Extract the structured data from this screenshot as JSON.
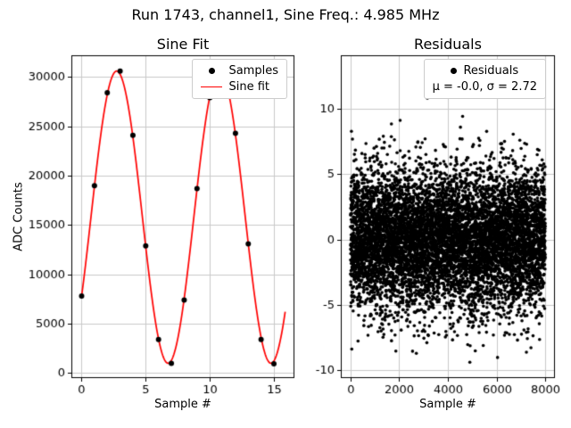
{
  "suptitle": "Run 1743, channel1, Sine Freq.: 4.985 MHz",
  "colors": {
    "fit_line": "#ff0000",
    "samples": "#000000",
    "grid": "#c9c9c9",
    "spine": "#000000",
    "background": "#ffffff"
  },
  "chart_data": [
    {
      "id": "sine_fit",
      "type": "scatter",
      "title": "Sine Fit",
      "xlabel": "Sample #",
      "ylabel": "ADC Counts",
      "xlim": [
        -0.8,
        16.6
      ],
      "ylim": [
        -500,
        32200
      ],
      "xticks": [
        0,
        5,
        10,
        15
      ],
      "yticks": [
        0,
        5000,
        10000,
        15000,
        20000,
        25000,
        30000
      ],
      "grid": true,
      "samples": {
        "x": [
          0,
          1,
          2,
          3,
          4,
          5,
          6,
          7,
          8,
          9,
          10,
          11,
          12,
          13,
          14,
          15
        ],
        "y": [
          7800,
          19000,
          28400,
          30600,
          24100,
          12900,
          3400,
          1000,
          7400,
          18700,
          27900,
          30400,
          24300,
          13100,
          3400,
          950
        ]
      },
      "fit": {
        "offset": 15800,
        "amplitude": 14800,
        "freq_cycles_per_sample": 0.1246,
        "phase_rad": -0.57,
        "x_start": 0,
        "x_end": 15.9
      },
      "legend": [
        {
          "label": "Samples",
          "marker": "dot",
          "color": "#000000"
        },
        {
          "label": "Sine fit",
          "marker": "line",
          "color": "#ff0000"
        }
      ],
      "legend_position": "upper right"
    },
    {
      "id": "residuals",
      "type": "scatter",
      "title": "Residuals",
      "xlabel": "Sample #",
      "ylabel": "",
      "xlim": [
        -400,
        8400
      ],
      "ylim": [
        -10.6,
        14.1
      ],
      "xticks": [
        0,
        2000,
        4000,
        6000,
        8000
      ],
      "yticks": [
        -10,
        -5,
        0,
        5,
        10
      ],
      "grid": true,
      "n_points": 8000,
      "x_range": [
        0,
        8000
      ],
      "mu": -0.0,
      "sigma": 2.72,
      "seed": 1743,
      "legend": [
        {
          "label": "Residuals",
          "marker": "dot",
          "color": "#000000"
        },
        {
          "label": "μ = -0.0, σ = 2.72",
          "marker": "none"
        }
      ],
      "legend_position": "upper right"
    }
  ]
}
